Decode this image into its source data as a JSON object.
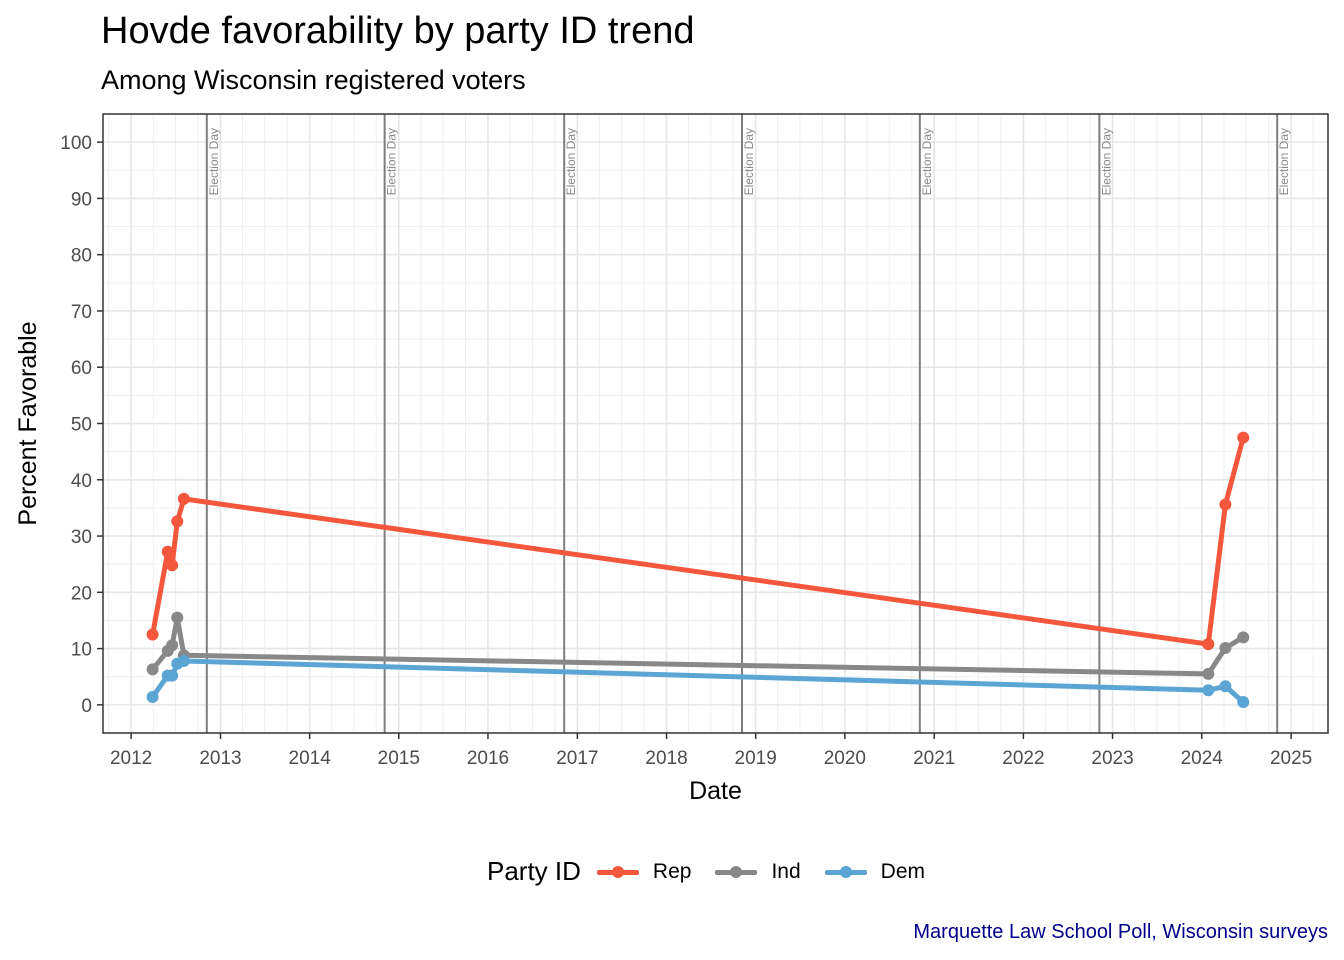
{
  "chart_data": {
    "type": "line",
    "title": "Hovde favorability by party ID trend",
    "subtitle": "Among Wisconsin registered voters",
    "xlabel": "Date",
    "ylabel": "Percent Favorable",
    "x_tick_labels": [
      "2012",
      "2013",
      "2014",
      "2015",
      "2016",
      "2017",
      "2018",
      "2019",
      "2020",
      "2021",
      "2022",
      "2023",
      "2024",
      "2025"
    ],
    "y_ticks": [
      0,
      10,
      20,
      30,
      40,
      50,
      60,
      70,
      80,
      90,
      100
    ],
    "xlim": [
      "2011-09-08",
      "2025-06-01"
    ],
    "ylim": [
      -5,
      105
    ],
    "grid": true,
    "legend_title": "Party ID",
    "legend_position": "bottom",
    "caption": "Marquette Law School Poll, Wisconsin surveys",
    "reference_lines": [
      {
        "date": "2012-11-06",
        "label": "Election Day"
      },
      {
        "date": "2014-11-04",
        "label": "Election Day"
      },
      {
        "date": "2016-11-08",
        "label": "Election Day"
      },
      {
        "date": "2018-11-06",
        "label": "Election Day"
      },
      {
        "date": "2020-11-03",
        "label": "Election Day"
      },
      {
        "date": "2022-11-08",
        "label": "Election Day"
      },
      {
        "date": "2024-11-05",
        "label": "Election Day"
      }
    ],
    "series": [
      {
        "name": "Rep",
        "color": "#f4573c",
        "points": [
          {
            "x": "2012-03-29",
            "y": 12.5
          },
          {
            "x": "2012-05-30",
            "y": 27.2
          },
          {
            "x": "2012-06-17",
            "y": 24.8
          },
          {
            "x": "2012-07-08",
            "y": 32.6
          },
          {
            "x": "2012-08-04",
            "y": 36.6
          },
          {
            "x": "2024-01-28",
            "y": 10.8
          },
          {
            "x": "2024-04-07",
            "y": 35.6
          },
          {
            "x": "2024-06-19",
            "y": 47.5
          }
        ]
      },
      {
        "name": "Ind",
        "color": "#888888",
        "points": [
          {
            "x": "2012-03-29",
            "y": 6.3
          },
          {
            "x": "2012-05-30",
            "y": 9.6
          },
          {
            "x": "2012-06-17",
            "y": 10.6
          },
          {
            "x": "2012-07-08",
            "y": 15.5
          },
          {
            "x": "2012-08-04",
            "y": 8.8
          },
          {
            "x": "2024-01-28",
            "y": 5.5
          },
          {
            "x": "2024-04-07",
            "y": 10.1
          },
          {
            "x": "2024-06-19",
            "y": 12.0
          }
        ]
      },
      {
        "name": "Dem",
        "color": "#5aa5d3",
        "points": [
          {
            "x": "2012-03-29",
            "y": 1.4
          },
          {
            "x": "2012-05-30",
            "y": 5.2
          },
          {
            "x": "2012-06-17",
            "y": 5.2
          },
          {
            "x": "2012-07-08",
            "y": 7.3
          },
          {
            "x": "2012-08-04",
            "y": 7.8
          },
          {
            "x": "2024-01-28",
            "y": 2.6
          },
          {
            "x": "2024-04-07",
            "y": 3.3
          },
          {
            "x": "2024-06-19",
            "y": 0.5
          }
        ]
      }
    ]
  }
}
